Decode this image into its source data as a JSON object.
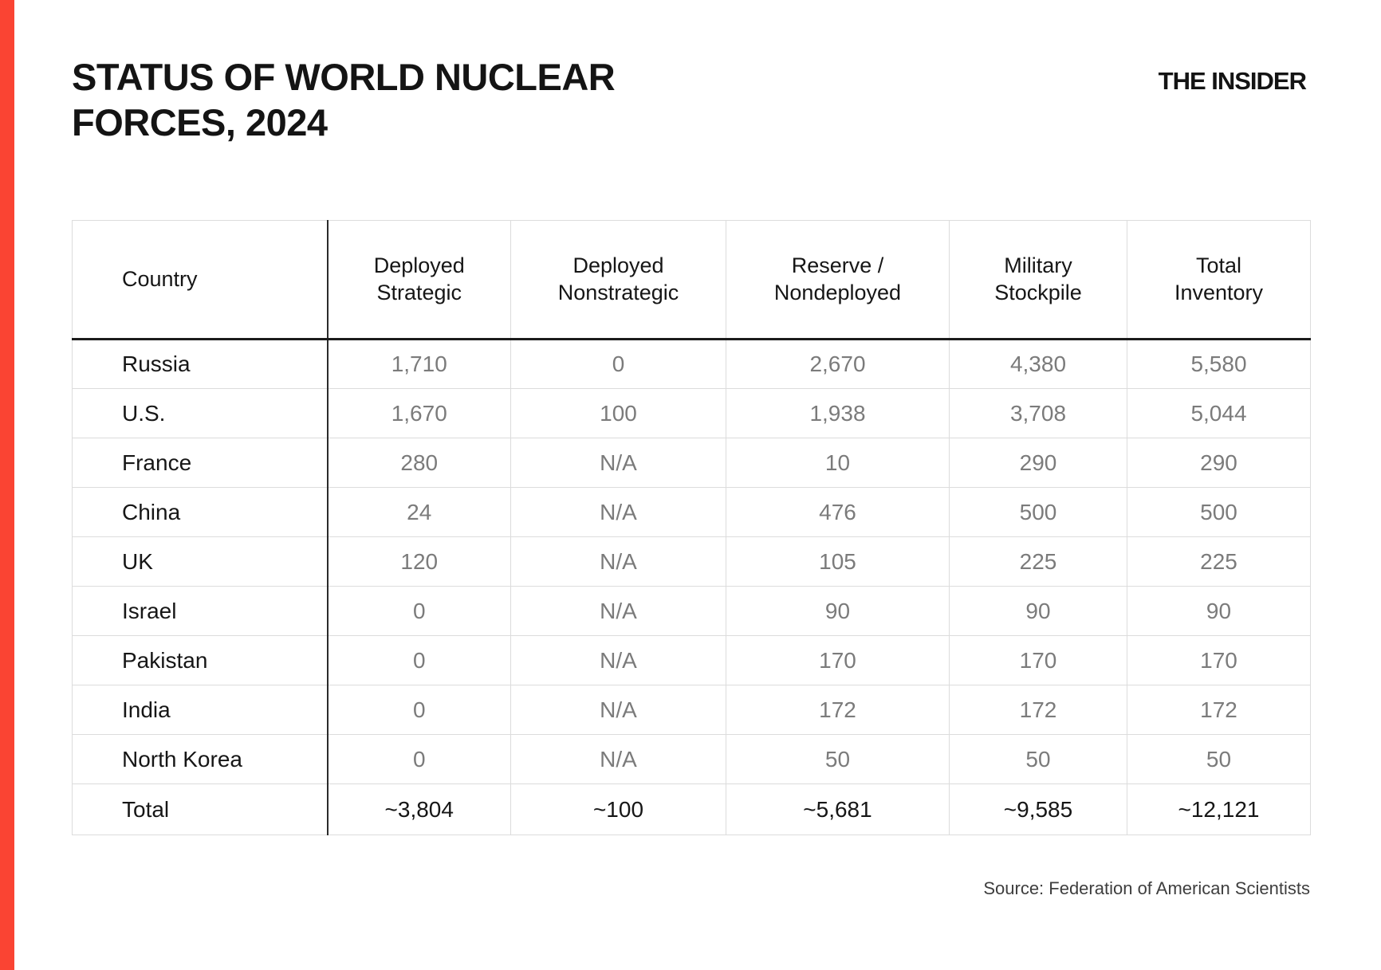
{
  "theme": {
    "accent_color": "#fa4433"
  },
  "header": {
    "title_line1": "STATUS OF WORLD NUCLEAR",
    "title_line2": "FORCES, 2024",
    "brand": "THE INSIDER"
  },
  "table": {
    "columns": [
      "Country",
      "Deployed Strategic",
      "Deployed Nonstrategic",
      "Reserve / Nondeployed",
      "Military Stockpile",
      "Total Inventory"
    ],
    "rows": [
      {
        "country": "Russia",
        "values": [
          "1,710",
          "0",
          "2,670",
          "4,380",
          "5,580"
        ]
      },
      {
        "country": "U.S.",
        "values": [
          "1,670",
          "100",
          "1,938",
          "3,708",
          "5,044"
        ]
      },
      {
        "country": "France",
        "values": [
          "280",
          "N/A",
          "10",
          "290",
          "290"
        ]
      },
      {
        "country": "China",
        "values": [
          "24",
          "N/A",
          "476",
          "500",
          "500"
        ]
      },
      {
        "country": "UK",
        "values": [
          "120",
          "N/A",
          "105",
          "225",
          "225"
        ]
      },
      {
        "country": "Israel",
        "values": [
          "0",
          "N/A",
          "90",
          "90",
          "90"
        ]
      },
      {
        "country": "Pakistan",
        "values": [
          "0",
          "N/A",
          "170",
          "170",
          "170"
        ]
      },
      {
        "country": "India",
        "values": [
          "0",
          "N/A",
          "172",
          "172",
          "172"
        ]
      },
      {
        "country": "North Korea",
        "values": [
          "0",
          "N/A",
          "50",
          "50",
          "50"
        ]
      }
    ],
    "total_row": {
      "country": "Total",
      "values": [
        "~3,804",
        "~100",
        "~5,681",
        "~9,585",
        "~12,121"
      ]
    }
  },
  "footer": {
    "source": "Source: Federation of American Scientists"
  },
  "chart_data": {
    "type": "table",
    "title": "Status of World Nuclear Forces, 2024",
    "columns": [
      "Country",
      "Deployed Strategic",
      "Deployed Nonstrategic",
      "Reserve / Nondeployed",
      "Military Stockpile",
      "Total Inventory"
    ],
    "rows": [
      [
        "Russia",
        "1,710",
        "0",
        "2,670",
        "4,380",
        "5,580"
      ],
      [
        "U.S.",
        "1,670",
        "100",
        "1,938",
        "3,708",
        "5,044"
      ],
      [
        "France",
        "280",
        "N/A",
        "10",
        "290",
        "290"
      ],
      [
        "China",
        "24",
        "N/A",
        "476",
        "500",
        "500"
      ],
      [
        "UK",
        "120",
        "N/A",
        "105",
        "225",
        "225"
      ],
      [
        "Israel",
        "0",
        "N/A",
        "90",
        "90",
        "90"
      ],
      [
        "Pakistan",
        "0",
        "N/A",
        "170",
        "170",
        "170"
      ],
      [
        "India",
        "0",
        "N/A",
        "172",
        "172",
        "172"
      ],
      [
        "North Korea",
        "0",
        "N/A",
        "50",
        "50",
        "50"
      ],
      [
        "Total",
        "~3,804",
        "~100",
        "~5,681",
        "~9,585",
        "~12,121"
      ]
    ],
    "source": "Source: Federation of American Scientists"
  }
}
